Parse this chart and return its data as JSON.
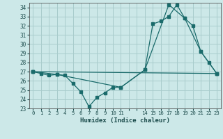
{
  "xlabel": "Humidex (Indice chaleur)",
  "bg_color": "#cce8e8",
  "grid_color": "#a8cccc",
  "line_color": "#1a6b6b",
  "xlim": [
    -0.5,
    23.5
  ],
  "ylim": [
    23,
    34.5
  ],
  "yticks": [
    23,
    24,
    25,
    26,
    27,
    28,
    29,
    30,
    31,
    32,
    33,
    34
  ],
  "xtick_positions": [
    0,
    1,
    2,
    3,
    4,
    5,
    6,
    7,
    8,
    9,
    10,
    11,
    12,
    13,
    14,
    15,
    16,
    17,
    18,
    19,
    20,
    21,
    22,
    23
  ],
  "xtick_labels": [
    "0",
    "1",
    "2",
    "3",
    "4",
    "5",
    "6",
    "7",
    "8",
    "9",
    "10",
    "11",
    "",
    "",
    "14",
    "15",
    "16",
    "17",
    "18",
    "19",
    "20",
    "21",
    "22",
    "23"
  ],
  "line1_x": [
    0,
    1,
    2,
    3,
    4,
    5,
    6,
    7,
    8,
    9,
    10,
    11,
    14,
    15,
    16,
    17,
    18,
    19,
    20,
    21,
    22,
    23
  ],
  "line1_y": [
    27.0,
    26.8,
    26.6,
    26.7,
    26.6,
    25.7,
    24.8,
    23.2,
    24.2,
    24.7,
    25.3,
    25.3,
    27.2,
    32.2,
    32.5,
    33.0,
    34.3,
    32.8,
    32.0,
    29.2,
    28.0,
    26.8
  ],
  "line2_x": [
    0,
    3,
    11,
    14,
    17,
    19,
    21,
    23
  ],
  "line2_y": [
    27.0,
    26.7,
    25.3,
    27.2,
    34.3,
    32.8,
    29.2,
    26.8
  ],
  "line3_x": [
    0,
    23
  ],
  "line3_y": [
    27.0,
    26.8
  ]
}
